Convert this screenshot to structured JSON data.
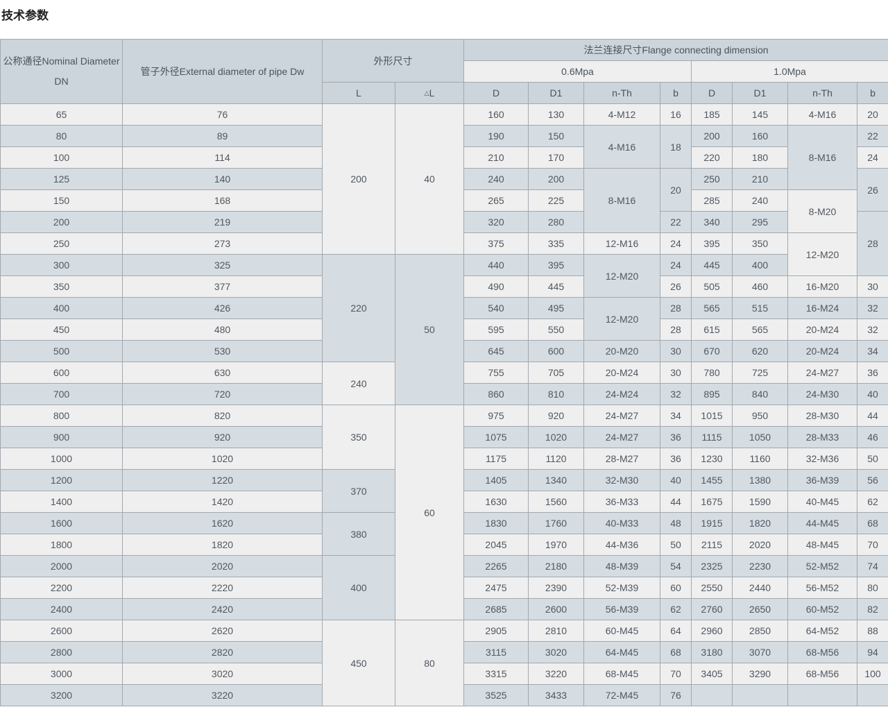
{
  "page": {
    "title": "技术参数"
  },
  "colors": {
    "header_bg": "#ccd5dc",
    "row_alt_bg": "#d5dde3",
    "row_base_bg": "#efefef",
    "border": "#a2a8ad",
    "text": "#505760",
    "title_text": "#222222"
  },
  "table": {
    "header": {
      "col_dn": "公称通径Nominal Diameter DN",
      "col_dw": "管子外径External diameter of pipe Dw",
      "col_outline": "外形尺寸",
      "col_flange": "法兰连接尺寸Flange connecting dimension",
      "p06": "0.6Mpa",
      "p10": "1.0Mpa",
      "sub": {
        "L": "L",
        "dl_tri": "△",
        "dl_l": "L",
        "D": "D",
        "D1": "D1",
        "nth": "n-Th",
        "b": "b"
      }
    },
    "rows": [
      [
        "65",
        "76",
        {
          "v": "200",
          "rs": 7
        },
        {
          "v": "40",
          "rs": 7
        },
        "160",
        "130",
        "4-M12",
        "16",
        "185",
        "145",
        "4-M16",
        "20"
      ],
      [
        "80",
        "89",
        "190",
        "150",
        {
          "v": "4-M16",
          "rs": 2
        },
        {
          "v": "18",
          "rs": 2
        },
        "200",
        "160",
        {
          "v": "8-M16",
          "rs": 3
        },
        "22"
      ],
      [
        "100",
        "114",
        "210",
        "170",
        "220",
        "180",
        "24"
      ],
      [
        "125",
        "140",
        "240",
        "200",
        {
          "v": "8-M16",
          "rs": 3
        },
        {
          "v": "20",
          "rs": 2
        },
        "250",
        "210",
        {
          "v": "26",
          "rs": 2
        }
      ],
      [
        "150",
        "168",
        "265",
        "225",
        "285",
        "240",
        {
          "v": "8-M20",
          "rs": 2
        }
      ],
      [
        "200",
        "219",
        "320",
        "280",
        "22",
        "340",
        "295",
        {
          "v": "28",
          "rs": 3
        }
      ],
      [
        "250",
        "273",
        "375",
        "335",
        "12-M16",
        "24",
        "395",
        "350",
        {
          "v": "12-M20",
          "rs": 2
        }
      ],
      [
        "300",
        "325",
        {
          "v": "220",
          "rs": 5
        },
        {
          "v": "50",
          "rs": 7
        },
        "440",
        "395",
        {
          "v": "12-M20",
          "rs": 2
        },
        "24",
        "445",
        "400"
      ],
      [
        "350",
        "377",
        "490",
        "445",
        "26",
        "505",
        "460",
        "16-M20",
        "30"
      ],
      [
        "400",
        "426",
        "540",
        "495",
        {
          "v": "12-M20",
          "rs": 2
        },
        "28",
        "565",
        "515",
        "16-M24",
        "32"
      ],
      [
        "450",
        "480",
        "595",
        "550",
        "28",
        "615",
        "565",
        "20-M24",
        "32"
      ],
      [
        "500",
        "530",
        "645",
        "600",
        "20-M20",
        "30",
        "670",
        "620",
        "20-M24",
        "34"
      ],
      [
        "600",
        "630",
        {
          "v": "240",
          "rs": 2
        },
        "755",
        "705",
        "20-M24",
        "30",
        "780",
        "725",
        "24-M27",
        "36"
      ],
      [
        "700",
        "720",
        "860",
        "810",
        "24-M24",
        "32",
        "895",
        "840",
        "24-M30",
        "40"
      ],
      [
        "800",
        "820",
        {
          "v": "350",
          "rs": 3
        },
        {
          "v": "60",
          "rs": 10
        },
        "975",
        "920",
        "24-M27",
        "34",
        "1015",
        "950",
        "28-M30",
        "44"
      ],
      [
        "900",
        "920",
        "1075",
        "1020",
        "24-M27",
        "36",
        "1115",
        "1050",
        "28-M33",
        "46"
      ],
      [
        "1000",
        "1020",
        "1175",
        "1120",
        "28-M27",
        "36",
        "1230",
        "1160",
        "32-M36",
        "50"
      ],
      [
        "1200",
        "1220",
        {
          "v": "370",
          "rs": 2
        },
        "1405",
        "1340",
        "32-M30",
        "40",
        "1455",
        "1380",
        "36-M39",
        "56"
      ],
      [
        "1400",
        "1420",
        "1630",
        "1560",
        "36-M33",
        "44",
        "1675",
        "1590",
        "40-M45",
        "62"
      ],
      [
        "1600",
        "1620",
        {
          "v": "380",
          "rs": 2
        },
        "1830",
        "1760",
        "40-M33",
        "48",
        "1915",
        "1820",
        "44-M45",
        "68"
      ],
      [
        "1800",
        "1820",
        "2045",
        "1970",
        "44-M36",
        "50",
        "2115",
        "2020",
        "48-M45",
        "70"
      ],
      [
        "2000",
        "2020",
        {
          "v": "400",
          "rs": 3
        },
        "2265",
        "2180",
        "48-M39",
        "54",
        "2325",
        "2230",
        "52-M52",
        "74"
      ],
      [
        "2200",
        "2220",
        "2475",
        "2390",
        "52-M39",
        "60",
        "2550",
        "2440",
        "56-M52",
        "80"
      ],
      [
        "2400",
        "2420",
        "2685",
        "2600",
        "56-M39",
        "62",
        "2760",
        "2650",
        "60-M52",
        "82"
      ],
      [
        "2600",
        "2620",
        {
          "v": "450",
          "rs": 4
        },
        {
          "v": "80",
          "rs": 4
        },
        "2905",
        "2810",
        "60-M45",
        "64",
        "2960",
        "2850",
        "64-M52",
        "88"
      ],
      [
        "2800",
        "2820",
        "3115",
        "3020",
        "64-M45",
        "68",
        "3180",
        "3070",
        "68-M56",
        "94"
      ],
      [
        "3000",
        "3020",
        "3315",
        "3220",
        "68-M45",
        "70",
        "3405",
        "3290",
        "68-M56",
        "100"
      ],
      [
        "3200",
        "3220",
        "3525",
        "3433",
        "72-M45",
        "76",
        "",
        "",
        "",
        ""
      ]
    ]
  }
}
